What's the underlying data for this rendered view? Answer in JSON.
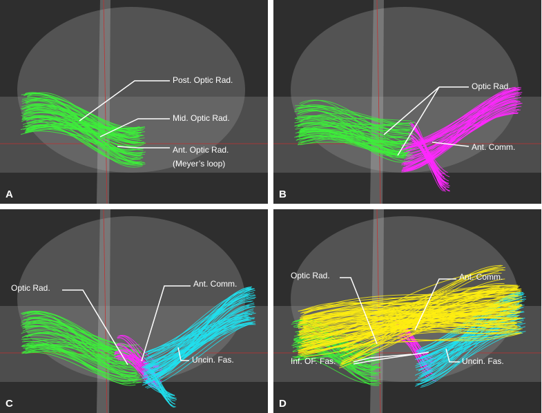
{
  "panels": [
    {
      "letter": "A",
      "labels": [
        "Post. Optic Rad.",
        "Mid. Optic Rad.",
        "Ant. Optic Rad.",
        "(Meyer’s loop)"
      ]
    },
    {
      "letter": "B",
      "labels": [
        "Optic Rad.",
        "Ant. Comm."
      ]
    },
    {
      "letter": "C",
      "labels": [
        "Optic Rad.",
        "Ant. Comm.",
        "Uncin. Fas."
      ]
    },
    {
      "letter": "D",
      "labels": [
        "Optic Rad.",
        "Ant. Comm.",
        "Inf. OF. Fas.",
        "Uncin. Fas."
      ]
    }
  ]
}
